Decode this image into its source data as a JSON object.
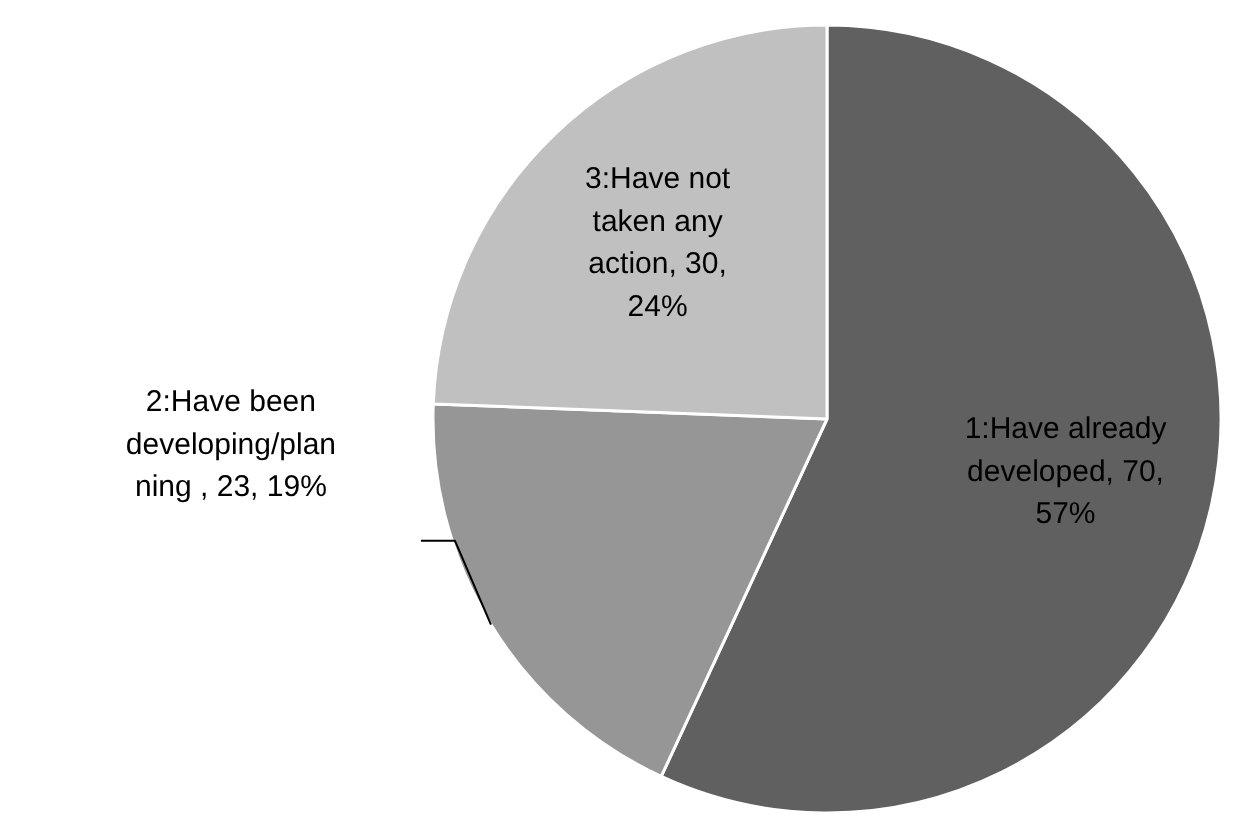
{
  "chart_data": {
    "type": "pie",
    "categories": [
      "1:Have already developed",
      "2:Have been developing/planning ",
      "3:Have not taken any action"
    ],
    "values": [
      70,
      23,
      30
    ],
    "colors": [
      "#606060",
      "#969696",
      "#c0c0c0"
    ],
    "value_labels": [
      "70, 57%",
      "23, 19%",
      "30, 24%"
    ]
  }
}
